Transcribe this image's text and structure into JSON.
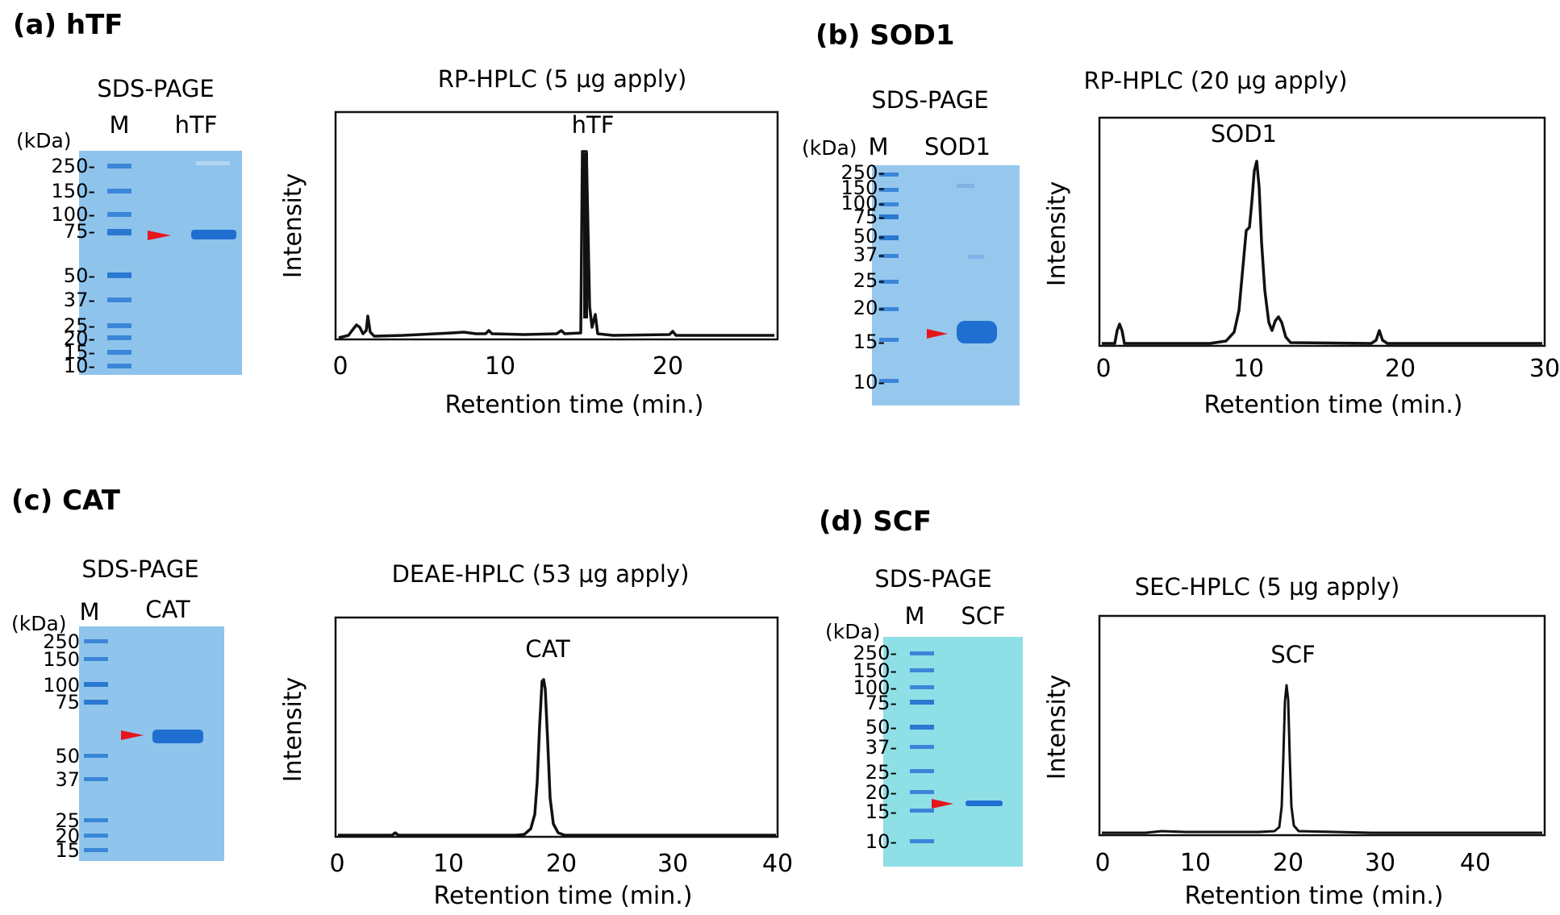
{
  "panels": [
    {
      "id": "a",
      "title": "(a) hTF",
      "gel": {
        "title": "SDS-PAGE",
        "unit_label": "(kDa)",
        "lane_labels": [
          "M",
          "hTF"
        ],
        "marker_labels": [
          "250-",
          "150-",
          "100-",
          "75-",
          "50-",
          "37-",
          "25-",
          "20-",
          "15-",
          "10-"
        ],
        "gel_color": "#8ec3ec"
      },
      "chart": {
        "title": "RP-HPLC (5 μg apply)",
        "xlabel": "Retention time (min.)",
        "ylabel": "Intensity",
        "xticks": [
          "0",
          "10",
          "20"
        ],
        "peak_label": "hTF"
      }
    },
    {
      "id": "b",
      "title": "(b) SOD1",
      "gel": {
        "title": "SDS-PAGE",
        "unit_label": "(kDa)",
        "lane_labels": [
          "M",
          "SOD1"
        ],
        "marker_labels": [
          "250-",
          "150-",
          "100-",
          "75-",
          "50-",
          "37-",
          "25-",
          "20-",
          "15-",
          "10-"
        ],
        "gel_color": "#96c8ee"
      },
      "chart": {
        "title": "RP-HPLC (20 μg apply)",
        "xlabel": "Retention time (min.)",
        "ylabel": "Intensity",
        "xticks": [
          "0",
          "10",
          "20",
          "30"
        ],
        "peak_label": "SOD1"
      }
    },
    {
      "id": "c",
      "title": "(c) CAT",
      "gel": {
        "title": "SDS-PAGE",
        "unit_label": "(kDa)",
        "lane_labels": [
          "M",
          "CAT"
        ],
        "marker_labels": [
          "250",
          "150",
          "100",
          "75",
          "50",
          "37",
          "25",
          "20",
          "15"
        ],
        "gel_color": "#8fc4ec"
      },
      "chart": {
        "title": "DEAE-HPLC (53 μg apply)",
        "xlabel": "Retention time (min.)",
        "ylabel": "Intensity",
        "xticks": [
          "0",
          "10",
          "20",
          "30",
          "40"
        ],
        "peak_label": "CAT"
      }
    },
    {
      "id": "d",
      "title": "(d) SCF",
      "gel": {
        "title": "SDS-PAGE",
        "unit_label": "(kDa)",
        "lane_labels": [
          "M",
          "SCF"
        ],
        "marker_labels": [
          "250-",
          "150-",
          "100-",
          "75-",
          "50-",
          "37-",
          "25-",
          "20-",
          "15-",
          "10-"
        ],
        "gel_color": "#8fdfe7"
      },
      "chart": {
        "title": "SEC-HPLC (5 μg apply)",
        "xlabel": "Retention time (min.)",
        "ylabel": "Intensity",
        "xticks": [
          "0",
          "10",
          "20",
          "30",
          "40"
        ],
        "peak_label": "SCF"
      }
    }
  ],
  "colors": {
    "band": "#1f6fd0",
    "arrow": "#e8141c",
    "trace": "#111111"
  }
}
